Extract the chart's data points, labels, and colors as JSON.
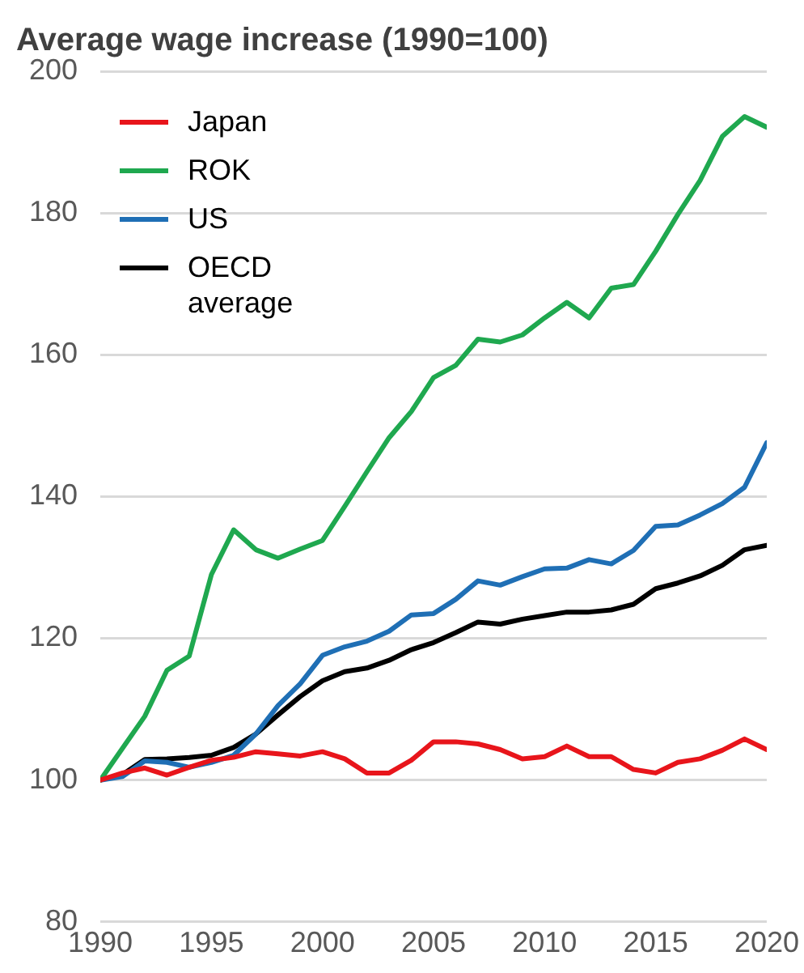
{
  "chart_data": {
    "type": "line",
    "title": "Average wage increase (1990=100)",
    "x": [
      1990,
      1991,
      1992,
      1993,
      1994,
      1995,
      1996,
      1997,
      1998,
      1999,
      2000,
      2001,
      2002,
      2003,
      2004,
      2005,
      2006,
      2007,
      2008,
      2009,
      2010,
      2011,
      2012,
      2013,
      2014,
      2015,
      2016,
      2017,
      2018,
      2019,
      2020
    ],
    "series": [
      {
        "name": "Japan",
        "color": "#e8151b",
        "values": [
          100,
          101,
          101.7,
          100.7,
          101.8,
          102.8,
          103.2,
          104,
          103.7,
          103.4,
          104,
          103,
          101,
          101,
          102.8,
          105.4,
          105.4,
          105.1,
          104.3,
          103,
          103.3,
          104.8,
          103.3,
          103.3,
          101.5,
          101,
          102.5,
          103,
          104.2,
          105.8,
          104.3
        ]
      },
      {
        "name": "ROK",
        "color": "#1fa84f",
        "values": [
          100,
          104.5,
          109,
          115.5,
          117.5,
          129,
          135.3,
          132.5,
          131.3,
          132.6,
          133.8,
          138.6,
          143.5,
          148.3,
          152,
          156.8,
          158.5,
          162.2,
          161.8,
          162.8,
          165.2,
          167.4,
          165.2,
          169.4,
          169.9,
          174.6,
          179.8,
          184.6,
          190.8,
          193.6,
          192.1
        ]
      },
      {
        "name": "US",
        "color": "#1f6fb5",
        "values": [
          100,
          100.5,
          102.7,
          102.5,
          101.8,
          102.5,
          103.5,
          106.5,
          110.5,
          113.6,
          117.6,
          118.8,
          119.6,
          121,
          123.3,
          123.5,
          125.5,
          128.1,
          127.5,
          128.7,
          129.8,
          129.9,
          131.1,
          130.5,
          132.4,
          135.8,
          136,
          137.4,
          139,
          141.3,
          147.6
        ]
      },
      {
        "name": "OECD average",
        "color": "#000000",
        "values": [
          100,
          100.8,
          102.9,
          103,
          103.2,
          103.5,
          104.6,
          106.5,
          109.2,
          111.8,
          114,
          115.3,
          115.8,
          116.9,
          118.4,
          119.4,
          120.8,
          122.3,
          122,
          122.7,
          123.2,
          123.7,
          123.7,
          124,
          124.8,
          127,
          127.8,
          128.8,
          130.3,
          132.5,
          133.1
        ]
      }
    ],
    "xlim": [
      1990,
      2020
    ],
    "xticks": [
      1990,
      1995,
      2000,
      2005,
      2010,
      2015,
      2020
    ],
    "ylim": [
      80,
      200
    ],
    "yticks": [
      80,
      100,
      120,
      140,
      160,
      180,
      200
    ],
    "grid": "y",
    "legend": "top left",
    "marker": "none",
    "line_style": "solid"
  }
}
